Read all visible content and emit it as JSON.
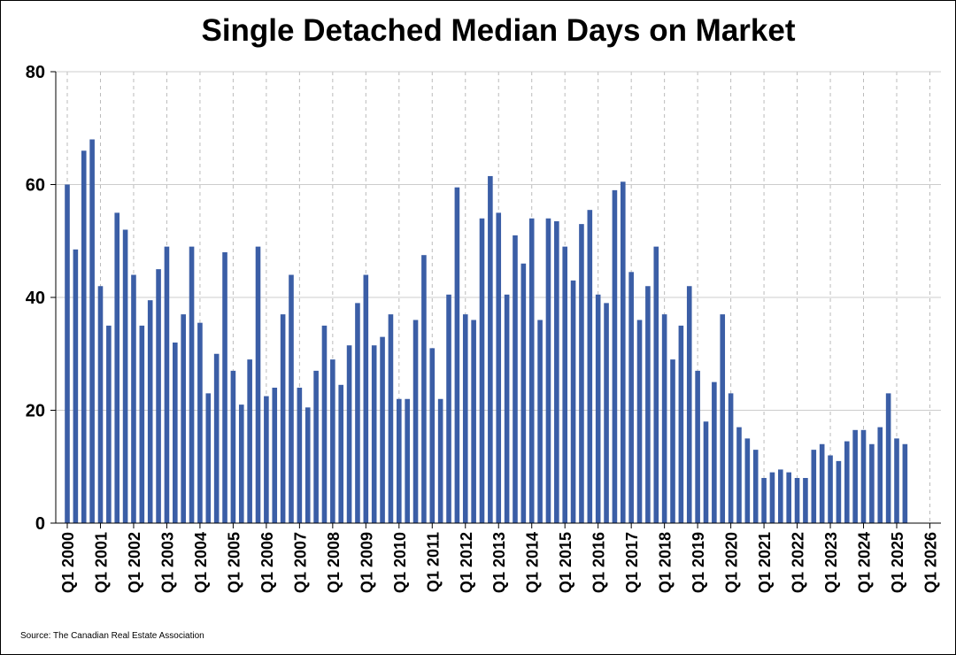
{
  "colors": {
    "bar": "#3b5ea6",
    "grid_h": "#cccccc",
    "grid_v": "#bbbbbb",
    "axis": "#000000"
  },
  "footer": {
    "source": "Source: The Canadian Real Estate Association"
  },
  "chart_data": {
    "type": "bar",
    "title": "Single Detached Median Days on Market",
    "xlabel": "",
    "ylabel": "",
    "ylim": [
      0,
      80
    ],
    "yticks": [
      0,
      20,
      40,
      60,
      80
    ],
    "grid": {
      "horizontal": true,
      "vertical": true,
      "vertical_style": "dashed"
    },
    "legend": "none",
    "x_tick_labels": [
      "Q1 2000",
      "Q1 2001",
      "Q1 2002",
      "Q1 2003",
      "Q1 2004",
      "Q1 2005",
      "Q1 2006",
      "Q1 2007",
      "Q1 2008",
      "Q1 2009",
      "Q1 2010",
      "Q1 2011",
      "Q1 2012",
      "Q1 2013",
      "Q1 2014",
      "Q1 2015",
      "Q1 2016",
      "Q1 2017",
      "Q1 2018",
      "Q1 2019",
      "Q1 2020",
      "Q1 2021",
      "Q1 2022",
      "Q1 2023",
      "Q1 2024",
      "Q1 2025",
      "Q1 2026"
    ],
    "series": [
      {
        "name": "",
        "first_period": "Q1 2000",
        "frequency": "quarterly",
        "values": [
          60,
          48.5,
          66,
          68,
          42,
          35,
          55,
          52,
          44,
          35,
          39.5,
          45,
          49,
          32,
          37,
          49,
          35.5,
          23,
          30,
          48,
          27,
          21,
          29,
          49,
          22.5,
          24,
          37,
          44,
          24,
          20.5,
          27,
          35,
          29,
          24.5,
          31.5,
          39,
          44,
          31.5,
          33,
          37,
          22,
          22,
          36,
          47.5,
          31,
          22,
          40.5,
          59.5,
          37,
          36,
          54,
          61.5,
          55,
          40.5,
          51,
          46,
          54,
          36,
          54,
          53.5,
          49,
          43,
          53,
          55.5,
          40.5,
          39,
          59,
          60.5,
          44.5,
          36,
          42,
          49,
          37,
          29,
          35,
          42,
          27,
          18,
          25,
          37,
          23,
          17,
          15,
          13,
          8,
          9,
          9.5,
          9,
          8,
          8,
          13,
          14,
          12,
          11,
          14.5,
          16.5,
          16.5,
          14,
          17,
          23,
          15,
          14
        ]
      }
    ]
  }
}
